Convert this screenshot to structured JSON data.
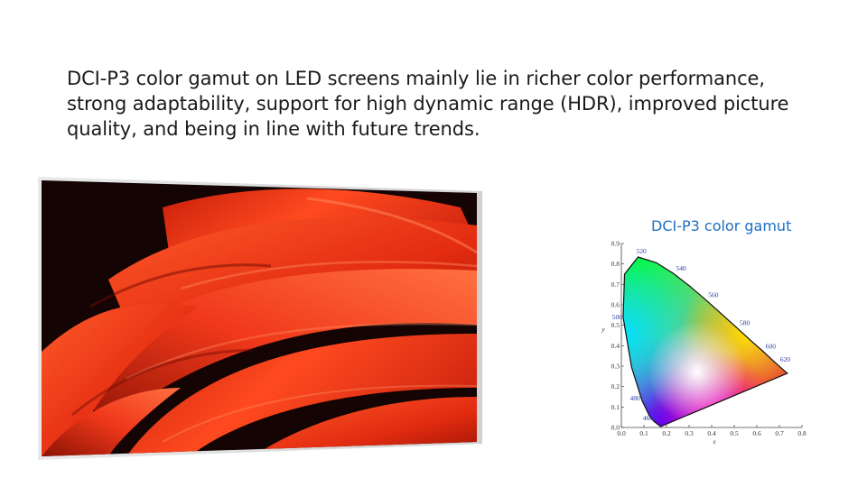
{
  "body_text": "DCI-P3 color gamut on LED screens mainly lie in richer color performance, strong adaptability, support for high dynamic range (HDR), improved picture quality, and being in line with future trends.",
  "gamut_title": "DCI-P3 color gamut",
  "chart_data": {
    "type": "scatter",
    "title": "",
    "xlabel": "x",
    "ylabel": "y",
    "xlim": [
      0.0,
      0.8
    ],
    "ylim": [
      0.0,
      0.9
    ],
    "x_ticks": [
      "0.0",
      "0.1",
      "0.2",
      "0.3",
      "0.4",
      "0.5",
      "0.6",
      "0.7",
      "0.8"
    ],
    "y_ticks": [
      "0.0",
      "0.1",
      "0.2",
      "0.3",
      "0.4",
      "0.5",
      "0.6",
      "0.7",
      "0.8",
      "0.9"
    ],
    "wavelength_labels": [
      {
        "label": "460",
        "x": 0.144,
        "y": 0.03
      },
      {
        "label": "480",
        "x": 0.091,
        "y": 0.133
      },
      {
        "label": "500",
        "x": 0.008,
        "y": 0.538
      },
      {
        "label": "520",
        "x": 0.074,
        "y": 0.834
      },
      {
        "label": "540",
        "x": 0.23,
        "y": 0.754
      },
      {
        "label": "560",
        "x": 0.373,
        "y": 0.625
      },
      {
        "label": "580",
        "x": 0.512,
        "y": 0.487
      },
      {
        "label": "600",
        "x": 0.627,
        "y": 0.373
      },
      {
        "label": "620",
        "x": 0.691,
        "y": 0.308
      }
    ],
    "locus": [
      [
        0.174,
        0.005
      ],
      [
        0.144,
        0.03
      ],
      [
        0.124,
        0.058
      ],
      [
        0.091,
        0.133
      ],
      [
        0.045,
        0.295
      ],
      [
        0.008,
        0.538
      ],
      [
        0.014,
        0.75
      ],
      [
        0.074,
        0.834
      ],
      [
        0.155,
        0.806
      ],
      [
        0.23,
        0.754
      ],
      [
        0.302,
        0.692
      ],
      [
        0.373,
        0.625
      ],
      [
        0.444,
        0.555
      ],
      [
        0.512,
        0.487
      ],
      [
        0.575,
        0.424
      ],
      [
        0.627,
        0.373
      ],
      [
        0.665,
        0.334
      ],
      [
        0.691,
        0.308
      ],
      [
        0.735,
        0.265
      ]
    ]
  }
}
